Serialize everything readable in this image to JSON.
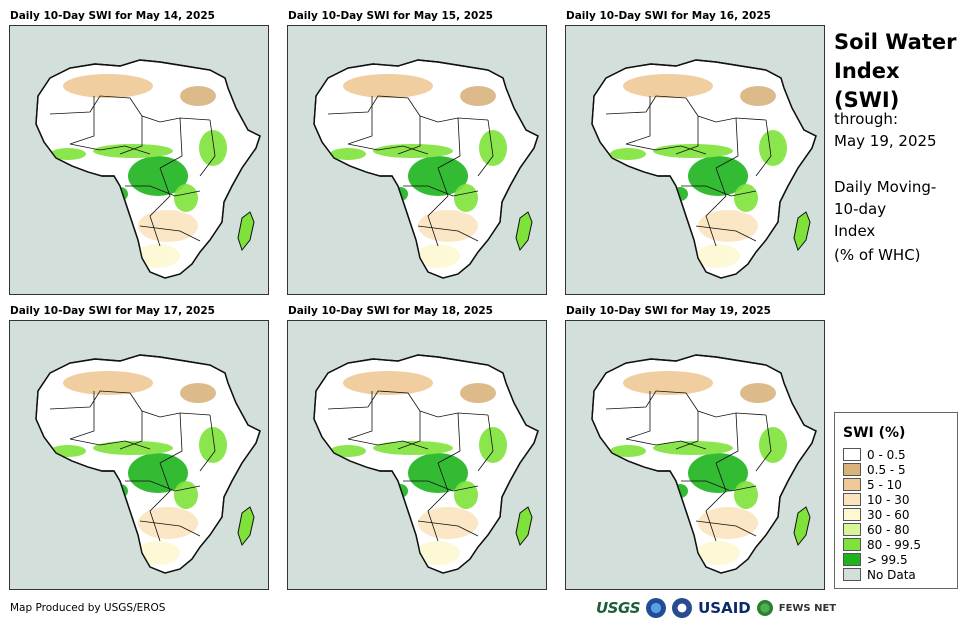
{
  "panels": [
    {
      "title": "Daily 10-Day SWI for May 14, 2025"
    },
    {
      "title": "Daily 10-Day SWI for May 15, 2025"
    },
    {
      "title": "Daily 10-Day SWI for May 16, 2025"
    },
    {
      "title": "Daily 10-Day SWI for May 17, 2025"
    },
    {
      "title": "Daily 10-Day SWI for May 18, 2025"
    },
    {
      "title": "Daily 10-Day SWI for May 19, 2025"
    }
  ],
  "side": {
    "title_line1": "Soil Water",
    "title_line2": "Index (SWI)",
    "through_label": "through:",
    "through_date": "May 19, 2025",
    "desc_line1": "Daily Moving-",
    "desc_line2": "10-day",
    "desc_line3": "Index",
    "desc_line4": "(% of WHC)"
  },
  "legend": {
    "title": "SWI (%)",
    "items": [
      {
        "label": "0 - 0.5",
        "color": "#ffffff"
      },
      {
        "label": "0.5 - 5",
        "color": "#d9b27c"
      },
      {
        "label": "5 - 10",
        "color": "#f0c996"
      },
      {
        "label": "10 - 30",
        "color": "#fbe3c0"
      },
      {
        "label": "30 - 60",
        "color": "#fdf8d2"
      },
      {
        "label": "60 - 80",
        "color": "#d8f59a"
      },
      {
        "label": "80 - 99.5",
        "color": "#7ee23a"
      },
      {
        "label": "> 99.5",
        "color": "#1eb41e"
      },
      {
        "label": "No Data",
        "color": "#d3dfdb"
      }
    ]
  },
  "footer": {
    "credit": "Map Produced by USGS/EROS"
  },
  "logos": {
    "usgs": "USGS",
    "usaid": "USAID",
    "fews": "FEWS NET"
  },
  "colors": {
    "sea": "#d3dfdb",
    "land_white": "#ffffff",
    "tan": "#f0c996",
    "green": "#1eb41e",
    "light_green": "#7ee23a",
    "border": "#111111"
  }
}
